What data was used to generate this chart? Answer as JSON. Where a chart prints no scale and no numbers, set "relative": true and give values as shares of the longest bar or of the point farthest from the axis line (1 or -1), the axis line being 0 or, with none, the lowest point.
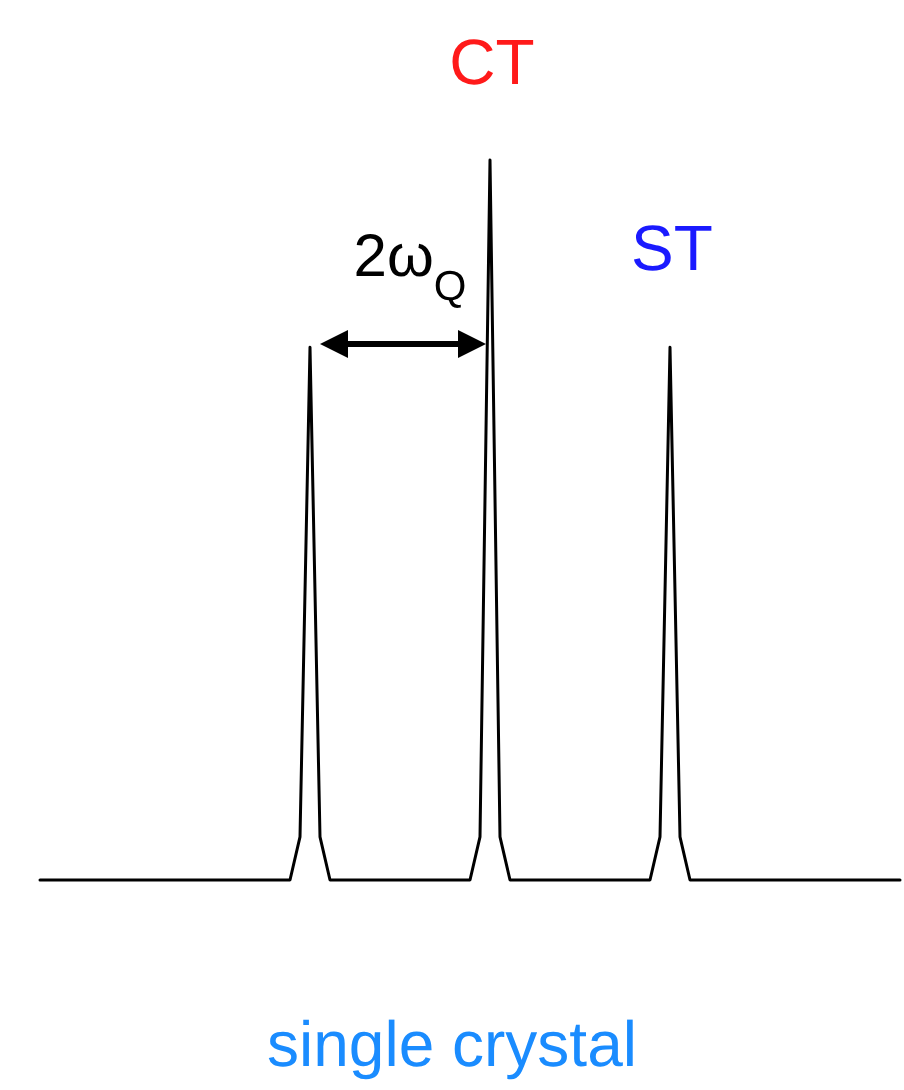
{
  "chart_data": {
    "type": "line",
    "relative": true,
    "categories": [
      null,
      null,
      null,
      null,
      null,
      null,
      null,
      null,
      null,
      null,
      null,
      null,
      null,
      null,
      null,
      null,
      null,
      null,
      null,
      null,
      null,
      null,
      null,
      null,
      null,
      null,
      null,
      null,
      null,
      null,
      null,
      null,
      null,
      null,
      null,
      null,
      null,
      null,
      null,
      null,
      null,
      null,
      null,
      null,
      null,
      null,
      null,
      null,
      null,
      null,
      null,
      null,
      null,
      null,
      null,
      null,
      null,
      null,
      null,
      null,
      null,
      null,
      null,
      null,
      null,
      null,
      null,
      null,
      null,
      null,
      null,
      null,
      null,
      null,
      null,
      null,
      null,
      null,
      null,
      null,
      null,
      null,
      null,
      null,
      null,
      null,
      null
    ],
    "series": [
      {
        "color": "#000000",
        "values": [
          0,
          0,
          0,
          0,
          0,
          0,
          0,
          0,
          0,
          0,
          0,
          0,
          0,
          0,
          0,
          0,
          0,
          0,
          0,
          0,
          0,
          0,
          0,
          0,
          0,
          0,
          0.06,
          0.74,
          0.06,
          0,
          0,
          0,
          0,
          0,
          0,
          0,
          0,
          0,
          0,
          0,
          0,
          0,
          0,
          0,
          0.06,
          1,
          0.06,
          0,
          0,
          0,
          0,
          0,
          0,
          0,
          0,
          0,
          0,
          0,
          0,
          0,
          0,
          0,
          0.06,
          0.74,
          0.06,
          0,
          0,
          0,
          0,
          0,
          0,
          0,
          0,
          0,
          0,
          0,
          0,
          0,
          0,
          0,
          0,
          0,
          0,
          0,
          0,
          0,
          0
        ]
      }
    ],
    "annotations": [
      "CT",
      "ST",
      "2ω$_{Q}$",
      "single crystal"
    ]
  }
}
